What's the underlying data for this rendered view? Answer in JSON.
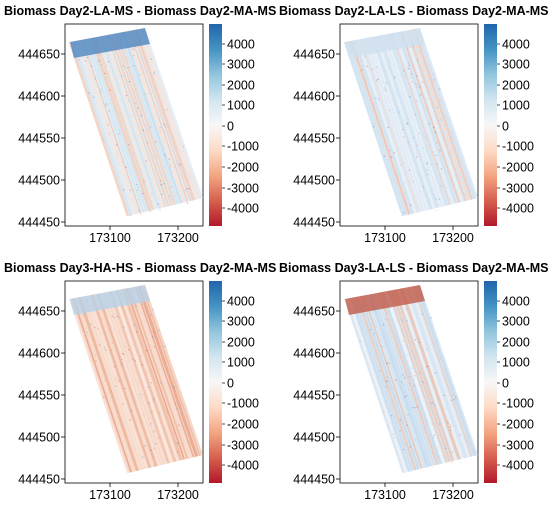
{
  "panels": [
    {
      "title": "Biomass Day2-LA-MS - Biomass Day2-MA-MS",
      "tone": "mixed",
      "x_ticks": [
        "173100",
        "173200"
      ],
      "y_ticks": [
        "444650",
        "444600",
        "444550",
        "444500",
        "444450"
      ],
      "colorbar_ticks": [
        "4000",
        "3000",
        "2000",
        "1000",
        "0",
        "-1000",
        "-2000",
        "-3000",
        "-4000"
      ]
    },
    {
      "title": "Biomass Day2-LA-LS - Biomass Day2-MA-MS",
      "tone": "blue",
      "x_ticks": [
        "173100",
        "173200"
      ],
      "y_ticks": [
        "444650",
        "444600",
        "444550",
        "444500",
        "444450"
      ],
      "colorbar_ticks": [
        "4000",
        "3000",
        "2000",
        "1000",
        "0",
        "-1000",
        "-2000",
        "-3000",
        "-4000"
      ]
    },
    {
      "title": "Biomass Day3-HA-HS - Biomass Day2-MA-MS",
      "tone": "red",
      "x_ticks": [
        "173100",
        "173200"
      ],
      "y_ticks": [
        "444650",
        "444600",
        "444550",
        "444500",
        "444450"
      ],
      "colorbar_ticks": [
        "4000",
        "3000",
        "2000",
        "1000",
        "0",
        "-1000",
        "-2000",
        "-3000",
        "-4000"
      ]
    },
    {
      "title": "Biomass Day3-LA-LS - Biomass Day2-MA-MS",
      "tone": "bluered",
      "x_ticks": [
        "173100",
        "173200"
      ],
      "y_ticks": [
        "444650",
        "444600",
        "444550",
        "444500",
        "444450"
      ],
      "colorbar_ticks": [
        "4000",
        "3000",
        "2000",
        "1000",
        "0",
        "-1000",
        "-2000",
        "-3000",
        "-4000"
      ]
    }
  ],
  "colors": {
    "diverging_scale": [
      "#b2182b",
      "#d6604d",
      "#f4a582",
      "#fddbc7",
      "#f7f7f7",
      "#d1e5f0",
      "#92c5de",
      "#4393c3",
      "#2166ac"
    ],
    "axis": "#000000"
  }
}
